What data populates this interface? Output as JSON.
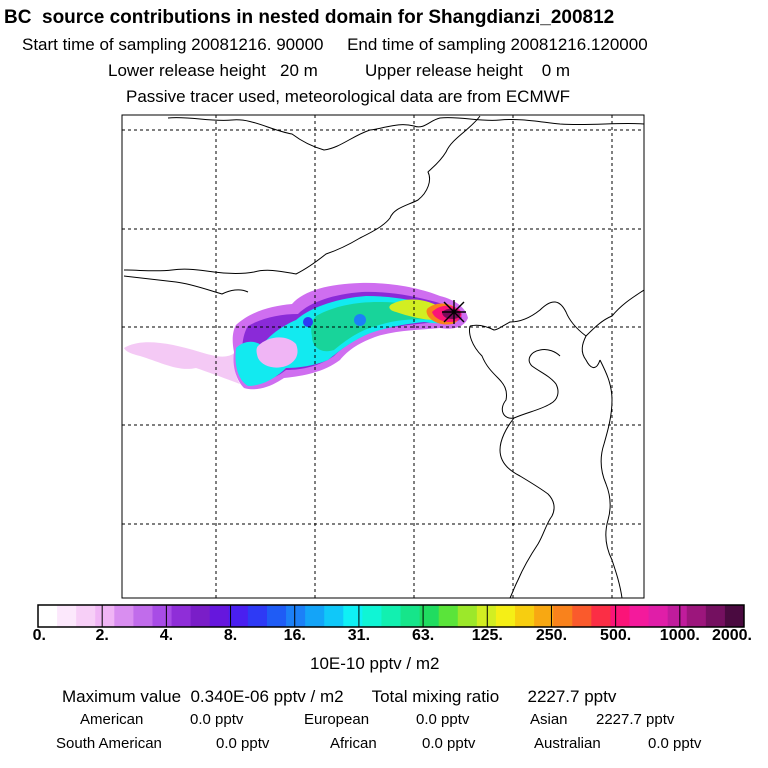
{
  "header": {
    "title": "BC  source contributions in nested domain for Shangdianzi_200812",
    "line1": "Start time of sampling 20081216. 90000     End time of sampling 20081216.120000",
    "line2": "Lower release height   20 m          Upper release height    0 m",
    "line3": "Passive tracer used, meteorological data are from ECMWF"
  },
  "colorbar": {
    "ticks": [
      "0.",
      "2.",
      "4.",
      "8.",
      "16.",
      "31.",
      "63.",
      "125.",
      "250.",
      "500.",
      "1000.",
      "2000."
    ],
    "units": "10E-10 pptv / m2",
    "colors": [
      "#ffffff",
      "#fce8fc",
      "#f7cff7",
      "#f0b5f5",
      "#d98ef0",
      "#c16ceb",
      "#a84ce6",
      "#8f2ed8",
      "#7a1ec8",
      "#6617dd",
      "#4a1ff0",
      "#2e3af5",
      "#1f5cf5",
      "#1c80f7",
      "#14a4f8",
      "#10c8f9",
      "#0ff0f5",
      "#10f5d5",
      "#12f0b0",
      "#16e58a",
      "#20dc60",
      "#5ae43a",
      "#9ce82a",
      "#d2ee22",
      "#f5ef16",
      "#f7ce10",
      "#f8a812",
      "#f9821c",
      "#fa5a2c",
      "#fb2e45",
      "#fb1478",
      "#f41a9c",
      "#e01ea8",
      "#c01c9c",
      "#9c167c",
      "#741060",
      "#4a0a40"
    ]
  },
  "stats": {
    "max_line": "Maximum value  0.340E-06 pptv / m2      Total mixing ratio      2227.7 pptv",
    "regions": [
      {
        "name": "American",
        "value": "0.0 pptv"
      },
      {
        "name": "European",
        "value": "0.0 pptv"
      },
      {
        "name": "Asian",
        "value": "2227.7 pptv"
      },
      {
        "name": "South American",
        "value": "0.0 pptv"
      },
      {
        "name": "African",
        "value": "0.0 pptv"
      },
      {
        "name": "Australian",
        "value": "0.0 pptv"
      }
    ]
  }
}
